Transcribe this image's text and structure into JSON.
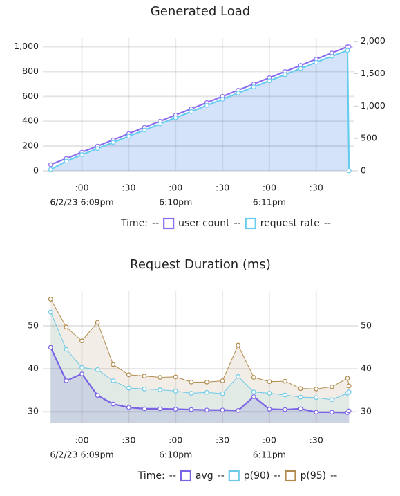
{
  "chart_data": [
    {
      "type": "line",
      "title": "Generated Load",
      "x": [
        "18:08:40",
        "18:08:50",
        "18:09:00",
        "18:09:10",
        "18:09:20",
        "18:09:30",
        "18:09:40",
        "18:09:50",
        "18:10:00",
        "18:10:10",
        "18:10:20",
        "18:10:30",
        "18:10:40",
        "18:10:50",
        "18:11:00",
        "18:11:10",
        "18:11:20",
        "18:11:30",
        "18:11:40",
        "18:11:50",
        "18:11:51"
      ],
      "xlim": [
        "18:08:35",
        "18:11:54"
      ],
      "xticks": [
        {
          "value": "18:09:00",
          "label": ":00",
          "sublabel": "6/2/23 6:09pm"
        },
        {
          "value": "18:09:30",
          "label": ":30"
        },
        {
          "value": "18:10:00",
          "label": ":00",
          "sublabel": "6:10pm"
        },
        {
          "value": "18:10:30",
          "label": ":30"
        },
        {
          "value": "18:11:00",
          "label": ":00",
          "sublabel": "6:11pm"
        },
        {
          "value": "18:11:30",
          "label": ":30"
        }
      ],
      "ylim": [
        0,
        1070
      ],
      "yticks": [
        0,
        200,
        400,
        600,
        800,
        {
          "value": 1000,
          "label": "1,000"
        }
      ],
      "y2lim": [
        0,
        2050
      ],
      "y2ticks": [
        0,
        500,
        {
          "value": 1000,
          "label": "1,000"
        },
        {
          "value": 1500,
          "label": "1,500"
        },
        {
          "value": 2000,
          "label": "2,000"
        }
      ],
      "grid": true,
      "legend": {
        "time": "Time:",
        "value": "--"
      },
      "series": [
        {
          "name": "user count",
          "color": "#8c6ff0",
          "values": [
            50,
            100,
            150,
            200,
            250,
            300,
            350,
            400,
            450,
            500,
            550,
            600,
            650,
            700,
            750,
            800,
            850,
            900,
            950,
            1000,
            1000
          ]
        },
        {
          "name": "request rate",
          "color": "#66cdef",
          "fill": "#d5e3fa",
          "axis": "y2",
          "values": [
            20,
            150,
            250,
            345,
            440,
            535,
            630,
            725,
            820,
            915,
            1010,
            1105,
            1200,
            1295,
            1390,
            1485,
            1580,
            1675,
            1770,
            1860,
            0
          ]
        }
      ]
    },
    {
      "type": "line",
      "title": "Request Duration (ms)",
      "x": [
        "18:08:40",
        "18:08:50",
        "18:09:00",
        "18:09:10",
        "18:09:20",
        "18:09:30",
        "18:09:40",
        "18:09:50",
        "18:10:00",
        "18:10:10",
        "18:10:20",
        "18:10:30",
        "18:10:40",
        "18:10:50",
        "18:11:00",
        "18:11:10",
        "18:11:20",
        "18:11:30",
        "18:11:40",
        "18:11:50",
        "18:11:51"
      ],
      "xlim": [
        "18:08:35",
        "18:11:54"
      ],
      "xticks": [
        {
          "value": "18:09:00",
          "label": ":00",
          "sublabel": "6/2/23 6:09pm"
        },
        {
          "value": "18:09:30",
          "label": ":30"
        },
        {
          "value": "18:10:00",
          "label": ":00",
          "sublabel": "6:10pm"
        },
        {
          "value": "18:10:30",
          "label": ":30"
        },
        {
          "value": "18:11:00",
          "label": ":00",
          "sublabel": "6:11pm"
        },
        {
          "value": "18:11:30",
          "label": ":30"
        }
      ],
      "ylim": [
        27.3,
        58.2
      ],
      "yticks": [
        30,
        40,
        50
      ],
      "y2lim": [
        27.3,
        58.2
      ],
      "y2ticks": [
        30,
        40,
        50
      ],
      "grid": true,
      "legend": {
        "time": "Time:",
        "value": "--"
      },
      "series": [
        {
          "name": "p(95)",
          "color": "#b08a4c",
          "fill": "#f2ede6",
          "values": [
            56.2,
            49.7,
            46.5,
            50.8,
            41,
            38.6,
            38.3,
            38,
            38.1,
            36.9,
            36.9,
            37.2,
            45.5,
            38,
            37,
            37.1,
            35.4,
            35.3,
            35.8,
            37.8,
            36
          ]
        },
        {
          "name": "p(90)",
          "color": "#6cc9e8",
          "fill": "#e2eae6",
          "values": [
            53.2,
            44.5,
            40.3,
            39.8,
            37.2,
            35.5,
            35.3,
            35.1,
            34.8,
            34.3,
            34.5,
            34.2,
            38.2,
            34.6,
            34.3,
            33.9,
            33.4,
            33.3,
            32.8,
            34.3,
            34.6
          ]
        },
        {
          "name": "avg",
          "color": "#7b63e6",
          "fill": "#ccd3e3",
          "values": [
            45,
            37.2,
            38.8,
            33.8,
            31.8,
            31,
            30.7,
            30.7,
            30.6,
            30.5,
            30.4,
            30.4,
            30.3,
            33.5,
            30.6,
            30.5,
            30.7,
            29.9,
            29.9,
            29.8,
            30.2
          ]
        }
      ]
    }
  ]
}
